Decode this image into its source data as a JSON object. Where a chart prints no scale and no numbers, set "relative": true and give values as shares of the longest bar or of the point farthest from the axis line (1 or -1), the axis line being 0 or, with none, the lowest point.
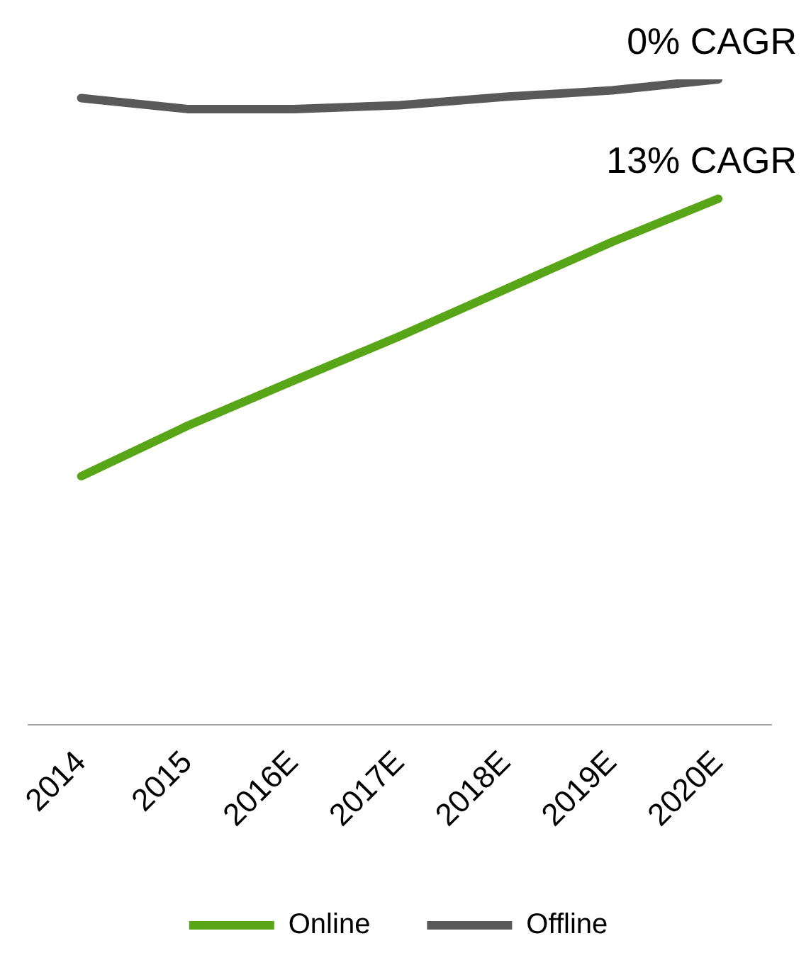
{
  "chart_data": {
    "type": "line",
    "relative": true,
    "categories": [
      "2014",
      "2015",
      "2016E",
      "2017E",
      "2018E",
      "2019E",
      "2020E"
    ],
    "series": [
      {
        "name": "Online",
        "color": "#58a618",
        "values": [
          0.385,
          0.463,
          0.533,
          0.602,
          0.675,
          0.748,
          0.815
        ]
      },
      {
        "name": "Offline",
        "color": "#595959",
        "values": [
          0.971,
          0.954,
          0.954,
          0.96,
          0.973,
          0.983,
          1
        ]
      }
    ],
    "annotations": [
      {
        "text": "0% CAGR",
        "x": "2020E",
        "y": 1
      },
      {
        "text": "13% CAGR",
        "x": "2020E",
        "y": 0.815
      }
    ],
    "grid": false,
    "legend": "bottom",
    "marker": "none",
    "line_style": "solid"
  }
}
